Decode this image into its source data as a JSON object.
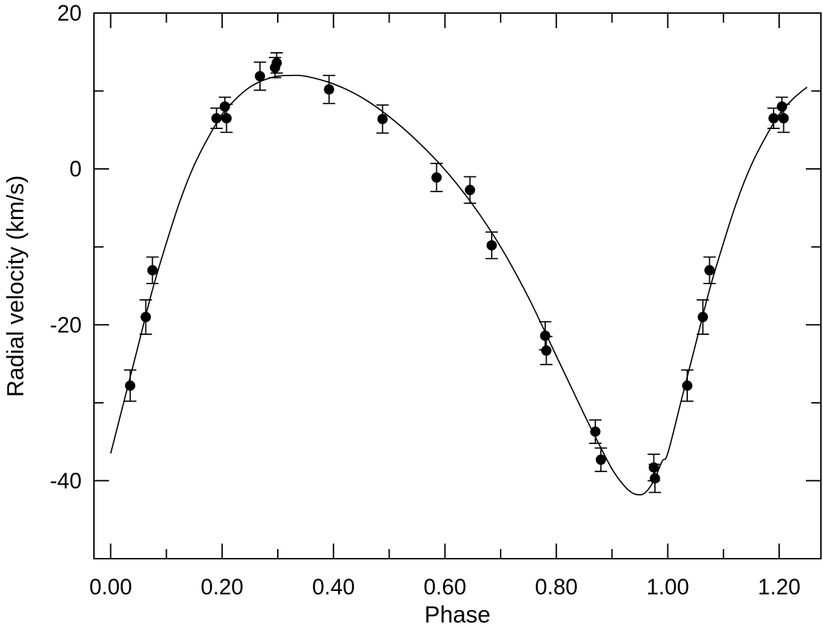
{
  "chart_data": {
    "type": "scatter",
    "title": "",
    "xlabel": "Phase",
    "ylabel": "Radial velocity (km/s)",
    "xlim": [
      -0.03,
      1.275
    ],
    "ylim": [
      -50,
      20
    ],
    "grid": false,
    "x_ticks": [
      0.0,
      0.2,
      0.4,
      0.6,
      0.8,
      1.0,
      1.2
    ],
    "x_tick_labels": [
      "0.00",
      "0.20",
      "0.40",
      "0.60",
      "0.80",
      "1.00",
      "1.20"
    ],
    "x_minor_ticks": [
      0.1,
      0.3,
      0.5,
      0.7,
      0.9,
      1.1
    ],
    "y_ticks": [
      20,
      0,
      -20,
      -40
    ],
    "y_tick_labels": [
      "20",
      "0",
      "-20",
      "-40"
    ],
    "y_minor_ticks": [
      10,
      -10,
      -30
    ],
    "series": [
      {
        "kind": "points_with_errorbars",
        "points": [
          {
            "x": 0.035,
            "y": -27.8,
            "err": 2.0
          },
          {
            "x": 0.063,
            "y": -19.0,
            "err": 2.2
          },
          {
            "x": 0.075,
            "y": -13.0,
            "err": 1.7
          },
          {
            "x": 0.19,
            "y": 6.5,
            "err": 1.3
          },
          {
            "x": 0.205,
            "y": 8.0,
            "err": 1.2
          },
          {
            "x": 0.208,
            "y": 6.5,
            "err": 1.8
          },
          {
            "x": 0.268,
            "y": 11.9,
            "err": 1.8
          },
          {
            "x": 0.295,
            "y": 13.0,
            "err": 1.3
          },
          {
            "x": 0.298,
            "y": 13.6,
            "err": 1.3
          },
          {
            "x": 0.392,
            "y": 10.2,
            "err": 1.8
          },
          {
            "x": 0.488,
            "y": 6.4,
            "err": 1.8
          },
          {
            "x": 0.585,
            "y": -1.1,
            "err": 1.8
          },
          {
            "x": 0.645,
            "y": -2.7,
            "err": 1.7
          },
          {
            "x": 0.684,
            "y": -9.8,
            "err": 1.7
          },
          {
            "x": 0.78,
            "y": -21.4,
            "err": 1.8
          },
          {
            "x": 0.782,
            "y": -23.3,
            "err": 1.8
          },
          {
            "x": 0.87,
            "y": -33.7,
            "err": 1.5
          },
          {
            "x": 0.88,
            "y": -37.3,
            "err": 1.5
          },
          {
            "x": 0.975,
            "y": -38.3,
            "err": 1.7
          },
          {
            "x": 0.977,
            "y": -39.7,
            "err": 1.8
          },
          {
            "x": 1.035,
            "y": -27.8,
            "err": 2.0
          },
          {
            "x": 1.063,
            "y": -19.0,
            "err": 2.2
          },
          {
            "x": 1.075,
            "y": -13.0,
            "err": 1.7
          },
          {
            "x": 1.19,
            "y": 6.5,
            "err": 1.3
          },
          {
            "x": 1.205,
            "y": 8.0,
            "err": 1.2
          },
          {
            "x": 1.208,
            "y": 6.5,
            "err": 1.8
          }
        ]
      },
      {
        "kind": "fit_curve",
        "points": [
          [
            0.0,
            -36.5
          ],
          [
            0.025,
            -29.5
          ],
          [
            0.05,
            -22.5
          ],
          [
            0.075,
            -15.5
          ],
          [
            0.1,
            -9.5
          ],
          [
            0.125,
            -4.0
          ],
          [
            0.15,
            0.5
          ],
          [
            0.175,
            4.0
          ],
          [
            0.2,
            7.0
          ],
          [
            0.225,
            9.0
          ],
          [
            0.25,
            10.5
          ],
          [
            0.275,
            11.4
          ],
          [
            0.3,
            11.9
          ],
          [
            0.325,
            12.0
          ],
          [
            0.35,
            11.9
          ],
          [
            0.4,
            10.9
          ],
          [
            0.45,
            9.2
          ],
          [
            0.5,
            6.7
          ],
          [
            0.55,
            3.6
          ],
          [
            0.6,
            -0.1
          ],
          [
            0.65,
            -4.6
          ],
          [
            0.7,
            -10.0
          ],
          [
            0.75,
            -16.5
          ],
          [
            0.8,
            -24.0
          ],
          [
            0.85,
            -31.5
          ],
          [
            0.88,
            -35.8
          ],
          [
            0.9,
            -38.5
          ],
          [
            0.92,
            -40.5
          ],
          [
            0.935,
            -41.5
          ],
          [
            0.948,
            -41.8
          ],
          [
            0.96,
            -41.5
          ],
          [
            0.975,
            -40.0
          ],
          [
            0.99,
            -37.5
          ],
          [
            1.0,
            -36.5
          ],
          [
            1.025,
            -29.5
          ],
          [
            1.05,
            -22.5
          ],
          [
            1.075,
            -15.5
          ],
          [
            1.1,
            -9.5
          ],
          [
            1.125,
            -4.0
          ],
          [
            1.15,
            0.5
          ],
          [
            1.175,
            4.0
          ],
          [
            1.2,
            7.0
          ],
          [
            1.225,
            9.0
          ],
          [
            1.25,
            10.5
          ]
        ]
      }
    ]
  }
}
